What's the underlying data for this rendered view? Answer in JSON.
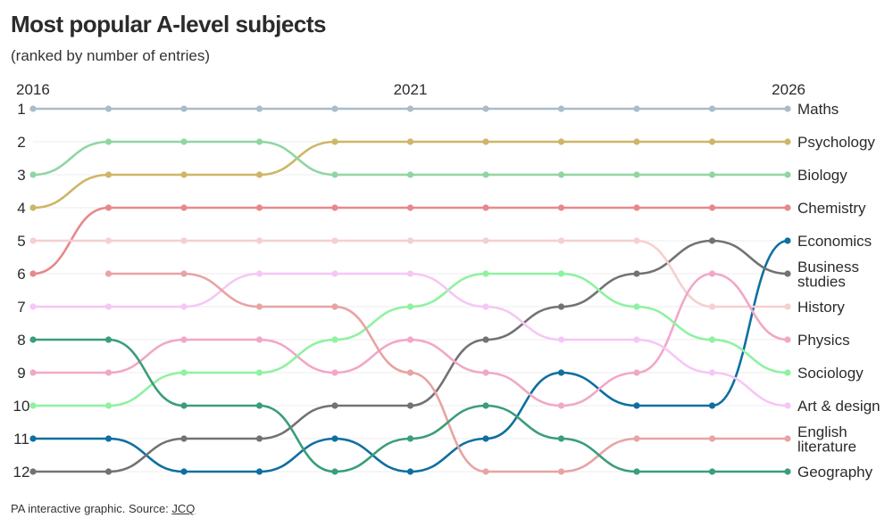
{
  "title": "Most popular A-level subjects",
  "subtitle": "(ranked by number of entries)",
  "footer": {
    "text": "PA interactive graphic. Source: ",
    "link": "JCQ"
  },
  "chart_data": {
    "type": "line",
    "description_type": "bump",
    "x": [
      2016,
      2017,
      2018,
      2019,
      2020,
      2021,
      2022,
      2023,
      2024,
      2025,
      2026
    ],
    "x_tick_labels": [
      {
        "x": 2016,
        "label": "2016"
      },
      {
        "x": 2021,
        "label": "2021"
      },
      {
        "x": 2026,
        "label": "2026"
      }
    ],
    "y_labels": [
      "1",
      "2",
      "3",
      "4",
      "5",
      "6",
      "7",
      "8",
      "9",
      "10",
      "11",
      "12"
    ],
    "ylim": [
      1,
      12
    ],
    "y_inverted": true,
    "grid": true,
    "series": [
      {
        "name": "Maths",
        "label_lines": [
          "Maths"
        ],
        "color": "#a9bcc9",
        "values": [
          1,
          1,
          1,
          1,
          1,
          1,
          1,
          1,
          1,
          1,
          1
        ]
      },
      {
        "name": "Psychology",
        "label_lines": [
          "Psychology"
        ],
        "color": "#cfb567",
        "values": [
          4,
          3,
          3,
          3,
          2,
          2,
          2,
          2,
          2,
          2,
          2
        ]
      },
      {
        "name": "Biology",
        "label_lines": [
          "Biology"
        ],
        "color": "#8fd6a2",
        "values": [
          3,
          2,
          2,
          2,
          3,
          3,
          3,
          3,
          3,
          3,
          3
        ]
      },
      {
        "name": "Chemistry",
        "label_lines": [
          "Chemistry"
        ],
        "color": "#e8888a",
        "values": [
          6,
          4,
          4,
          4,
          4,
          4,
          4,
          4,
          4,
          4,
          4
        ]
      },
      {
        "name": "Economics",
        "label_lines": [
          "Economics"
        ],
        "color": "#0e6fa0",
        "values": [
          11,
          11,
          12,
          12,
          11,
          12,
          11,
          9,
          10,
          10,
          5
        ]
      },
      {
        "name": "Business studies",
        "label_lines": [
          "Business",
          "studies"
        ],
        "color": "#727272",
        "values": [
          12,
          12,
          11,
          11,
          10,
          10,
          8,
          7,
          6,
          5,
          6
        ]
      },
      {
        "name": "History",
        "label_lines": [
          "History"
        ],
        "color": "#f6cfcf",
        "values": [
          5,
          5,
          5,
          5,
          5,
          5,
          5,
          5,
          5,
          7,
          7
        ]
      },
      {
        "name": "Physics",
        "label_lines": [
          "Physics"
        ],
        "color": "#f2a7c7",
        "values": [
          9,
          9,
          8,
          8,
          9,
          8,
          9,
          10,
          9,
          6,
          8
        ]
      },
      {
        "name": "Sociology",
        "label_lines": [
          "Sociology"
        ],
        "color": "#8ef2a0",
        "values": [
          10,
          10,
          9,
          9,
          8,
          7,
          6,
          6,
          7,
          8,
          9
        ]
      },
      {
        "name": "Art & design",
        "label_lines": [
          "Art & design"
        ],
        "color": "#f6c6f6",
        "values": [
          7,
          7,
          7,
          6,
          6,
          6,
          7,
          8,
          8,
          9,
          10
        ]
      },
      {
        "name": "English literature",
        "label_lines": [
          "English",
          "literature"
        ],
        "color": "#e8a3a3",
        "values": [
          null,
          6,
          6,
          7,
          7,
          9,
          12,
          12,
          11,
          11,
          11
        ]
      },
      {
        "name": "Geography",
        "label_lines": [
          "Geography"
        ],
        "color": "#3a9e78",
        "values": [
          8,
          8,
          10,
          10,
          12,
          11,
          10,
          11,
          12,
          12,
          12
        ]
      }
    ]
  }
}
